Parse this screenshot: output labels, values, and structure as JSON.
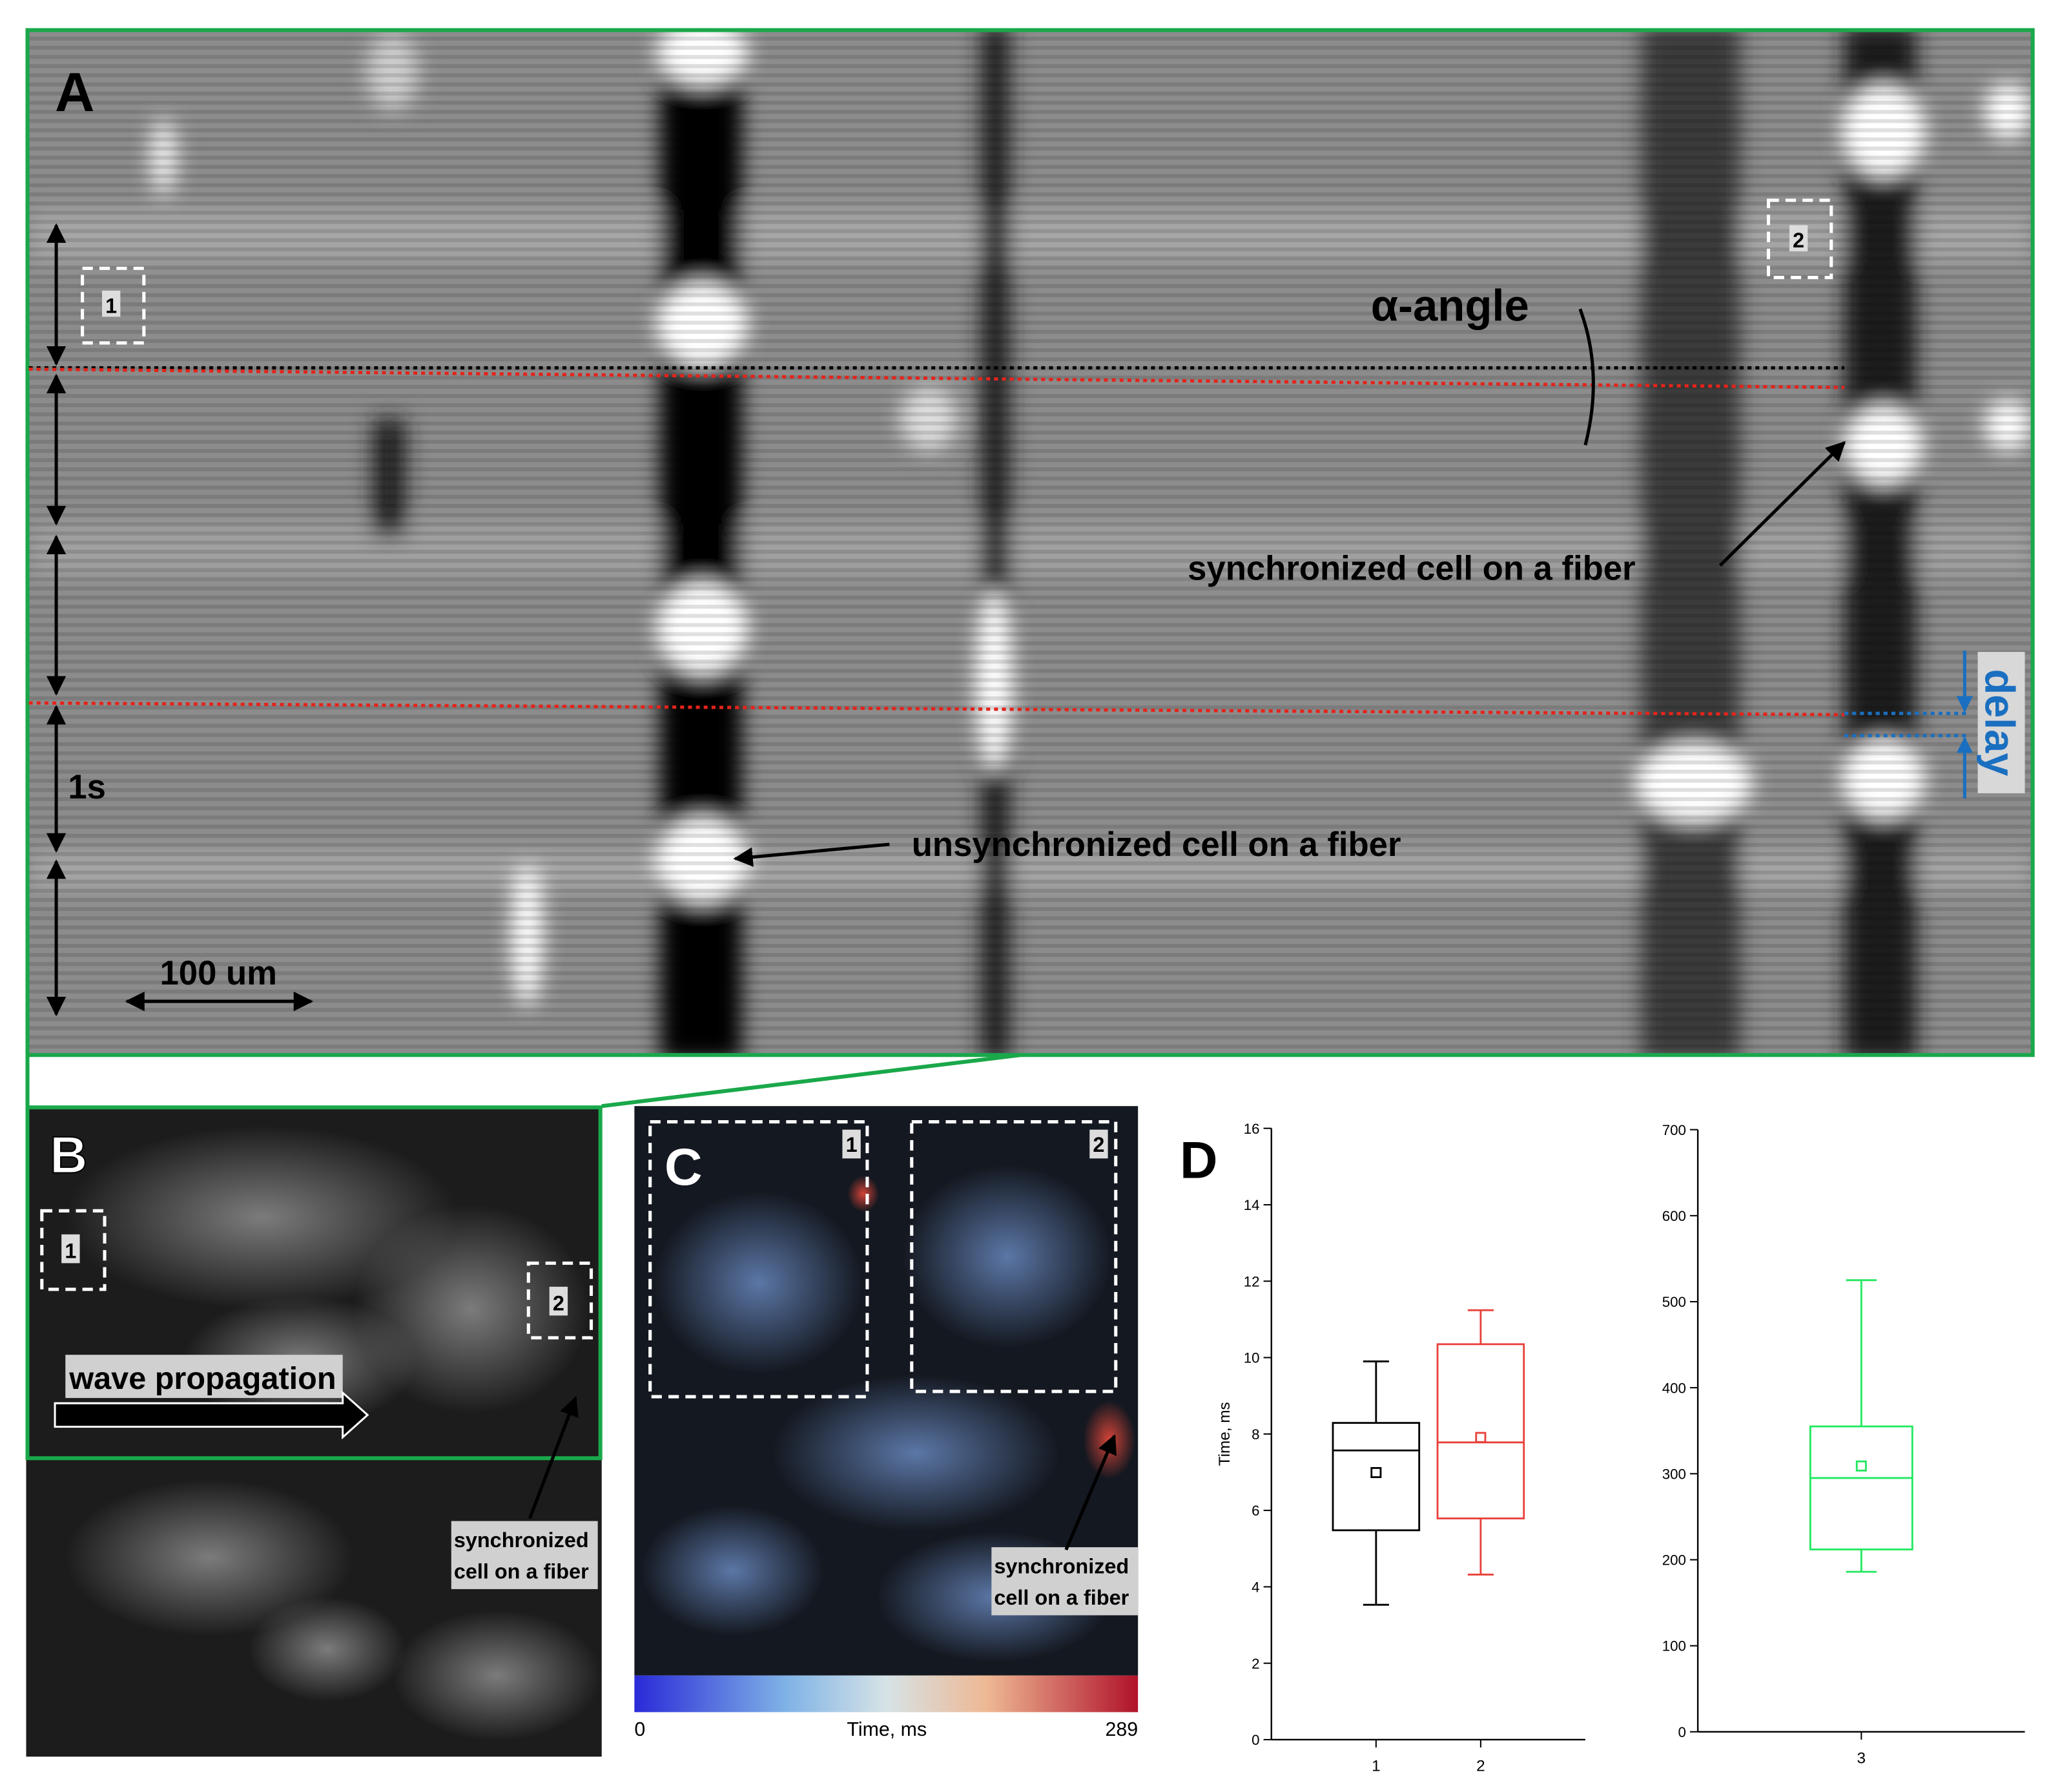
{
  "figure": {
    "panel_a": {
      "letter": "A",
      "alpha_label": "α-angle",
      "sync_label": "synchronized cell on a fiber",
      "unsync_label": "unsynchronized cell on a fiber",
      "delay_label": "delay",
      "time_scale": "1s",
      "length_scale": "100 um",
      "roi_1": "1",
      "roi_2": "2"
    },
    "panel_b": {
      "letter": "B",
      "roi_1": "1",
      "roi_2": "2",
      "wave_label": "wave propagation",
      "sync_label": [
        "synchronized",
        "cell on a fiber"
      ]
    },
    "panel_c": {
      "letter": "C",
      "roi_1": "1",
      "roi_2": "2",
      "sync_label": [
        "synchronized",
        "cell on a fiber"
      ],
      "colorbar_min": 0,
      "colorbar_label": "Time, ms",
      "colorbar_max": 289
    },
    "panel_d": {
      "letter": "D"
    }
  },
  "chart_data": [
    {
      "type": "box",
      "ylabel": "Time, ms",
      "ylim": [
        0,
        16
      ],
      "yticks": [
        0,
        2,
        4,
        6,
        8,
        10,
        12,
        14,
        16
      ],
      "categories": [
        "1",
        "2"
      ],
      "boxes": [
        {
          "color": "#000000",
          "whisker_low": 3.53,
          "q1": 5.48,
          "median": 7.57,
          "q3": 8.29,
          "whisker_high": 9.9,
          "mean": 6.99
        },
        {
          "color": "#e8413a",
          "whisker_low": 4.32,
          "q1": 5.79,
          "median": 7.78,
          "q3": 10.35,
          "whisker_high": 11.24,
          "mean": 7.91
        }
      ]
    },
    {
      "type": "box",
      "ylim": [
        0,
        700
      ],
      "yticks": [
        0,
        100,
        200,
        300,
        400,
        500,
        600,
        700
      ],
      "categories": [
        "3"
      ],
      "boxes": [
        {
          "color": "#22e860",
          "whisker_low": 186,
          "q1": 212,
          "median": 295,
          "q3": 355,
          "whisker_high": 525,
          "mean": 309
        }
      ]
    }
  ]
}
